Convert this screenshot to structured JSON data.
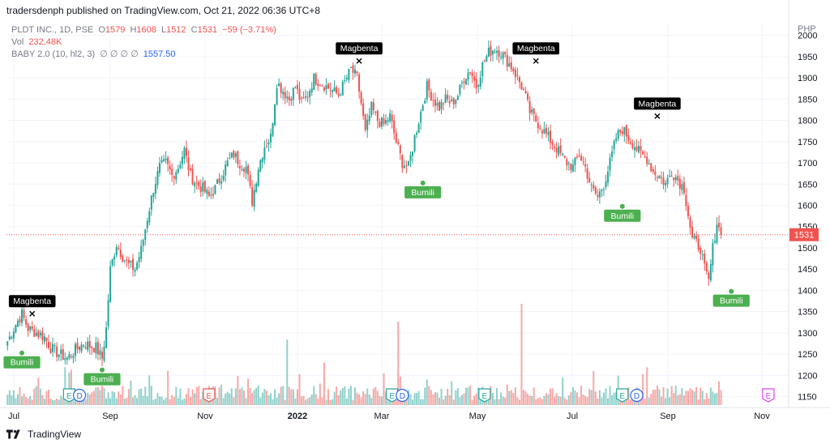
{
  "header": {
    "publisher_line": "tradersdenph published on TradingView.com, Oct 21, 2022 06:36 UTC+8"
  },
  "legend": {
    "symbol": "PLDT INC., 1D, PSE",
    "o_label": "O",
    "o_value": "1579",
    "h_label": "H",
    "h_value": "1608",
    "l_label": "L",
    "l_value": "1512",
    "c_label": "C",
    "c_value": "1531",
    "change": "−59 (−3.71%)",
    "vol_label": "Vol",
    "vol_value": "232.48K",
    "indicator_label": "BABY 2.0 (10, hl2, 3)",
    "indicator_empties": "∅ ∅ ∅ ∅",
    "indicator_value": "1557.50"
  },
  "currency": "PHP",
  "footer": {
    "brand": "TradingView"
  },
  "colors": {
    "up": "#26a69a",
    "down": "#ef5350",
    "grid": "#f0f3fa",
    "last_price": "#ef5350",
    "sell_label": "#000000",
    "buy_label": "#4caf50"
  },
  "chart_data": {
    "type": "candlestick",
    "y_axis": {
      "min": 1130,
      "max": 2030,
      "ticks": [
        1150,
        1200,
        1250,
        1300,
        1350,
        1400,
        1450,
        1500,
        1550,
        1600,
        1650,
        1700,
        1750,
        1800,
        1850,
        1900,
        1950,
        2000
      ]
    },
    "x_axis": {
      "ticks": [
        "Jul",
        "Sep",
        "Nov",
        "2022",
        "Mar",
        "May",
        "Jul",
        "Sep",
        "Nov"
      ]
    },
    "last_price": 1531,
    "close_path": [
      [
        0,
        1280
      ],
      [
        4,
        1320
      ],
      [
        7,
        1345
      ],
      [
        10,
        1310
      ],
      [
        14,
        1300
      ],
      [
        18,
        1290
      ],
      [
        21,
        1265
      ],
      [
        25,
        1250
      ],
      [
        29,
        1240
      ],
      [
        33,
        1260
      ],
      [
        37,
        1275
      ],
      [
        40,
        1270
      ],
      [
        43,
        1265
      ],
      [
        46,
        1240
      ],
      [
        48,
        1310
      ],
      [
        50,
        1450
      ],
      [
        53,
        1510
      ],
      [
        56,
        1480
      ],
      [
        59,
        1460
      ],
      [
        62,
        1450
      ],
      [
        65,
        1495
      ],
      [
        68,
        1570
      ],
      [
        71,
        1640
      ],
      [
        74,
        1690
      ],
      [
        77,
        1700
      ],
      [
        80,
        1670
      ],
      [
        83,
        1690
      ],
      [
        86,
        1730
      ],
      [
        89,
        1670
      ],
      [
        92,
        1650
      ],
      [
        95,
        1640
      ],
      [
        98,
        1620
      ],
      [
        101,
        1640
      ],
      [
        104,
        1670
      ],
      [
        107,
        1700
      ],
      [
        110,
        1720
      ],
      [
        113,
        1700
      ],
      [
        116,
        1690
      ],
      [
        119,
        1610
      ],
      [
        122,
        1690
      ],
      [
        125,
        1740
      ],
      [
        128,
        1760
      ],
      [
        131,
        1890
      ],
      [
        134,
        1870
      ],
      [
        137,
        1850
      ],
      [
        140,
        1880
      ],
      [
        143,
        1840
      ],
      [
        146,
        1860
      ],
      [
        149,
        1900
      ],
      [
        152,
        1890
      ],
      [
        155,
        1880
      ],
      [
        158,
        1870
      ],
      [
        161,
        1860
      ],
      [
        164,
        1890
      ],
      [
        167,
        1920
      ],
      [
        170,
        1900
      ],
      [
        172,
        1840
      ],
      [
        174,
        1770
      ],
      [
        177,
        1830
      ],
      [
        180,
        1800
      ],
      [
        183,
        1790
      ],
      [
        186,
        1810
      ],
      [
        189,
        1750
      ],
      [
        192,
        1700
      ],
      [
        195,
        1690
      ],
      [
        198,
        1760
      ],
      [
        201,
        1820
      ],
      [
        204,
        1880
      ],
      [
        207,
        1850
      ],
      [
        210,
        1830
      ],
      [
        213,
        1850
      ],
      [
        216,
        1840
      ],
      [
        219,
        1860
      ],
      [
        222,
        1900
      ],
      [
        225,
        1920
      ],
      [
        228,
        1880
      ],
      [
        231,
        1930
      ],
      [
        234,
        1960
      ],
      [
        237,
        1970
      ],
      [
        240,
        1960
      ],
      [
        243,
        1940
      ],
      [
        246,
        1920
      ],
      [
        248,
        1900
      ],
      [
        251,
        1870
      ],
      [
        254,
        1820
      ],
      [
        257,
        1800
      ],
      [
        260,
        1780
      ],
      [
        263,
        1760
      ],
      [
        266,
        1740
      ],
      [
        269,
        1720
      ],
      [
        272,
        1700
      ],
      [
        275,
        1690
      ],
      [
        278,
        1720
      ],
      [
        281,
        1690
      ],
      [
        284,
        1640
      ],
      [
        287,
        1620
      ],
      [
        290,
        1650
      ],
      [
        293,
        1700
      ],
      [
        296,
        1760
      ],
      [
        299,
        1780
      ],
      [
        302,
        1760
      ],
      [
        305,
        1740
      ],
      [
        308,
        1720
      ],
      [
        311,
        1710
      ],
      [
        314,
        1680
      ],
      [
        317,
        1670
      ],
      [
        320,
        1650
      ],
      [
        323,
        1680
      ],
      [
        326,
        1660
      ],
      [
        329,
        1640
      ],
      [
        331,
        1580
      ],
      [
        333,
        1520
      ],
      [
        335,
        1510
      ],
      [
        337,
        1500
      ],
      [
        339,
        1450
      ],
      [
        341,
        1420
      ],
      [
        343,
        1500
      ],
      [
        345,
        1560
      ],
      [
        347,
        1531
      ]
    ],
    "volume_spikes": [
      [
        136,
        55
      ],
      [
        190,
        70
      ],
      [
        250,
        85
      ],
      [
        330,
        12
      ],
      [
        346,
        20
      ]
    ],
    "events": [
      {
        "kind": "E",
        "bar": 30,
        "color": "#26a69a"
      },
      {
        "kind": "D",
        "bar": 35,
        "color": "#2962ff"
      },
      {
        "kind": "E",
        "bar": 98,
        "color": "#ef5350"
      },
      {
        "kind": "E",
        "bar": 187,
        "color": "#26a69a"
      },
      {
        "kind": "D",
        "bar": 192,
        "color": "#2962ff"
      },
      {
        "kind": "E",
        "bar": 232,
        "color": "#26a69a"
      },
      {
        "kind": "E",
        "bar": 299,
        "color": "#26a69a"
      },
      {
        "kind": "D",
        "bar": 306,
        "color": "#2962ff"
      },
      {
        "kind": "E",
        "bar": 370,
        "color": "#e040fb"
      }
    ],
    "sell_signals": [
      {
        "label": "Magbenta",
        "bar": 12,
        "price": 1345
      },
      {
        "label": "Magbenta",
        "bar": 171,
        "price": 1940
      },
      {
        "label": "Magbenta",
        "bar": 257,
        "price": 1940
      },
      {
        "label": "Magbenta",
        "bar": 316,
        "price": 1810
      }
    ],
    "buy_signals": [
      {
        "label": "Bumili",
        "bar": 7,
        "price": 1245
      },
      {
        "label": "Bumili",
        "bar": 46,
        "price": 1205
      },
      {
        "label": "Bumili",
        "bar": 202,
        "price": 1645
      },
      {
        "label": "Bumili",
        "bar": 299,
        "price": 1590
      },
      {
        "label": "Bumili",
        "bar": 352,
        "price": 1390
      }
    ]
  }
}
